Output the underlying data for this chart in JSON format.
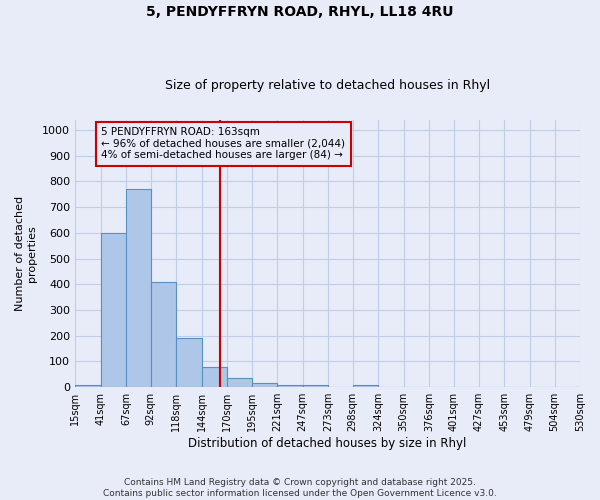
{
  "title1": "5, PENDYFFRYN ROAD, RHYL, LL18 4RU",
  "title2": "Size of property relative to detached houses in Rhyl",
  "xlabel": "Distribution of detached houses by size in Rhyl",
  "ylabel": "Number of detached\nproperties",
  "bin_labels": [
    "15sqm",
    "41sqm",
    "67sqm",
    "92sqm",
    "118sqm",
    "144sqm",
    "170sqm",
    "195sqm",
    "221sqm",
    "247sqm",
    "273sqm",
    "298sqm",
    "324sqm",
    "350sqm",
    "376sqm",
    "401sqm",
    "427sqm",
    "453sqm",
    "479sqm",
    "504sqm",
    "530sqm"
  ],
  "bin_edges": [
    15,
    41,
    67,
    92,
    118,
    144,
    170,
    195,
    221,
    247,
    273,
    298,
    324,
    350,
    376,
    401,
    427,
    453,
    479,
    504,
    530
  ],
  "bar_heights": [
    10,
    600,
    770,
    410,
    190,
    80,
    35,
    15,
    10,
    10,
    0,
    8,
    0,
    0,
    0,
    0,
    0,
    0,
    0,
    0
  ],
  "bar_color": "#aec6e8",
  "bar_edge_color": "#5a8fc2",
  "property_line_x": 163,
  "property_line_color": "#cc0000",
  "ylim": [
    0,
    1040
  ],
  "annotation_line1": "5 PENDYFFRYN ROAD: 163sqm",
  "annotation_line2": "← 96% of detached houses are smaller (2,044)",
  "annotation_line3": "4% of semi-detached houses are larger (84) →",
  "annotation_box_color": "#cc0000",
  "footer_text": "Contains HM Land Registry data © Crown copyright and database right 2025.\nContains public sector information licensed under the Open Government Licence v3.0.",
  "bg_color": "#e8ecf8",
  "grid_color": "#c0cce8"
}
